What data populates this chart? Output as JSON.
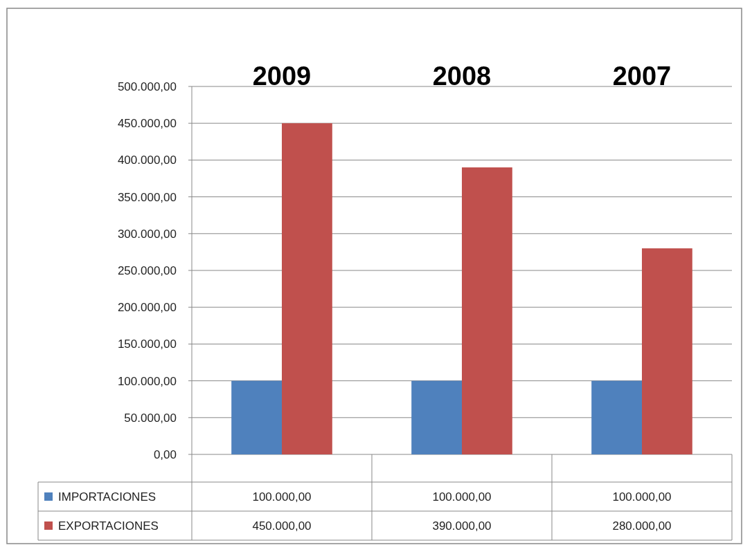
{
  "chart_data": {
    "type": "bar",
    "categories": [
      "2009",
      "2008",
      "2007"
    ],
    "series": [
      {
        "name": "IMPORTACIONES",
        "color": "#4f81bd",
        "values": [
          100000,
          100000,
          100000
        ],
        "value_labels": [
          "100.000,00",
          "100.000,00",
          "100.000,00"
        ]
      },
      {
        "name": "EXPORTACIONES",
        "color": "#c0504d",
        "values": [
          450000,
          390000,
          280000
        ],
        "value_labels": [
          "450.000,00",
          "390.000,00",
          "280.000,00"
        ]
      }
    ],
    "ylim": [
      0,
      500000
    ],
    "yticks": [
      {
        "value": 0,
        "label": "0,00"
      },
      {
        "value": 50000,
        "label": "50.000,00"
      },
      {
        "value": 100000,
        "label": "100.000,00"
      },
      {
        "value": 150000,
        "label": "150.000,00"
      },
      {
        "value": 200000,
        "label": "200.000,00"
      },
      {
        "value": 250000,
        "label": "250.000,00"
      },
      {
        "value": 300000,
        "label": "300.000,00"
      },
      {
        "value": 350000,
        "label": "350.000,00"
      },
      {
        "value": 400000,
        "label": "400.000,00"
      },
      {
        "value": 450000,
        "label": "450.000,00"
      },
      {
        "value": 500000,
        "label": "500.000,00"
      }
    ],
    "grid": "y",
    "legend": "bottom"
  }
}
